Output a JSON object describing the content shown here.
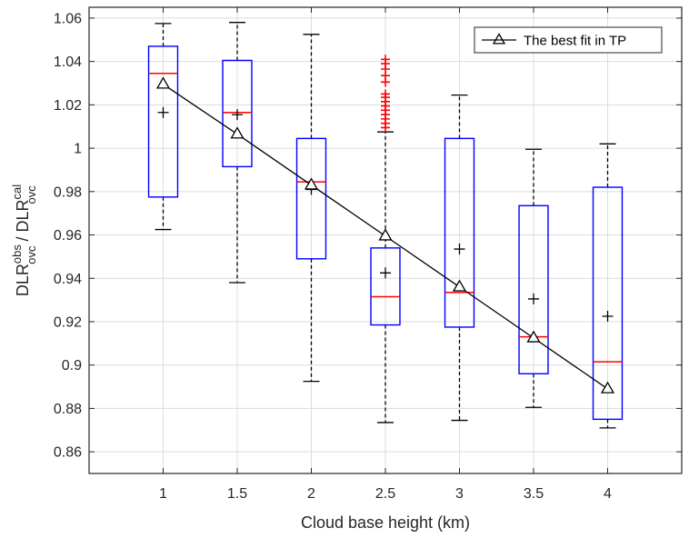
{
  "chart_data": {
    "type": "box",
    "xlabel": "Cloud base height (km)",
    "ylabel": {
      "parts": [
        {
          "text": "DLR",
          "style": "normal"
        },
        {
          "text": "obs",
          "style": "sup"
        },
        {
          "text": "ovc",
          "style": "sub"
        },
        {
          "text": " / DLR",
          "style": "normal"
        },
        {
          "text": "cal",
          "style": "sup"
        },
        {
          "text": "ovc",
          "style": "sub"
        }
      ]
    },
    "xlim": [
      0.5,
      4.5
    ],
    "ylim": [
      0.85,
      1.065
    ],
    "x_ticks": [
      1,
      1.5,
      2,
      2.5,
      3,
      3.5,
      4
    ],
    "x_tick_labels": [
      "1",
      "1.5",
      "2",
      "2.5",
      "3",
      "3.5",
      "4"
    ],
    "y_ticks": [
      0.86,
      0.88,
      0.9,
      0.92,
      0.94,
      0.96,
      0.98,
      1.0,
      1.02,
      1.04,
      1.06
    ],
    "y_tick_labels": [
      "0.86",
      "0.88",
      "0.9",
      "0.92",
      "0.94",
      "0.96",
      "0.98",
      "1",
      "1.02",
      "1.04",
      "1.06"
    ],
    "grid": true,
    "legend": {
      "position": "top-right",
      "entries": [
        "The best fit in TP"
      ]
    },
    "boxes": [
      {
        "x": 1.0,
        "whisker_low": 0.9625,
        "q1": 0.9775,
        "median": 1.0345,
        "q3": 1.047,
        "whisker_high": 1.0575,
        "mean": 1.0165,
        "outliers": []
      },
      {
        "x": 1.5,
        "whisker_low": 0.938,
        "q1": 0.9915,
        "median": 1.0165,
        "q3": 1.0405,
        "whisker_high": 1.058,
        "mean": 1.0155,
        "outliers": []
      },
      {
        "x": 2.0,
        "whisker_low": 0.8925,
        "q1": 0.949,
        "median": 0.9845,
        "q3": 1.0045,
        "whisker_high": 1.0525,
        "mean": 0.981,
        "outliers": []
      },
      {
        "x": 2.5,
        "whisker_low": 0.8735,
        "q1": 0.9185,
        "median": 0.9315,
        "q3": 0.954,
        "whisker_high": 1.0075,
        "mean": 0.9425,
        "outliers": [
          1.0095,
          1.0115,
          1.0135,
          1.0155,
          1.0175,
          1.0195,
          1.0215,
          1.0235,
          1.025,
          1.0305,
          1.0335,
          1.0365,
          1.039,
          1.041
        ]
      },
      {
        "x": 3.0,
        "whisker_low": 0.8745,
        "q1": 0.9175,
        "median": 0.9335,
        "q3": 1.0045,
        "whisker_high": 1.0245,
        "mean": 0.9535,
        "outliers": []
      },
      {
        "x": 3.5,
        "whisker_low": 0.8805,
        "q1": 0.896,
        "median": 0.913,
        "q3": 0.9735,
        "whisker_high": 0.9995,
        "mean": 0.9305,
        "outliers": []
      },
      {
        "x": 4.0,
        "whisker_low": 0.871,
        "q1": 0.875,
        "median": 0.9015,
        "q3": 0.982,
        "whisker_high": 1.002,
        "mean": 0.9225,
        "outliers": []
      }
    ],
    "series": [
      {
        "name": "The best fit in TP",
        "marker": "triangle",
        "color": "#000000",
        "x": [
          1,
          1.5,
          2,
          2.5,
          3,
          3.5,
          4
        ],
        "y": [
          1.0295,
          1.0065,
          0.983,
          0.9595,
          0.936,
          0.9125,
          0.889
        ]
      }
    ],
    "colors": {
      "box": "#0000ff",
      "median": "#ff0000",
      "outlier": "#ff0000",
      "whisker": "#000000",
      "grid": "#dcdcdc",
      "axis": "#262626"
    }
  }
}
